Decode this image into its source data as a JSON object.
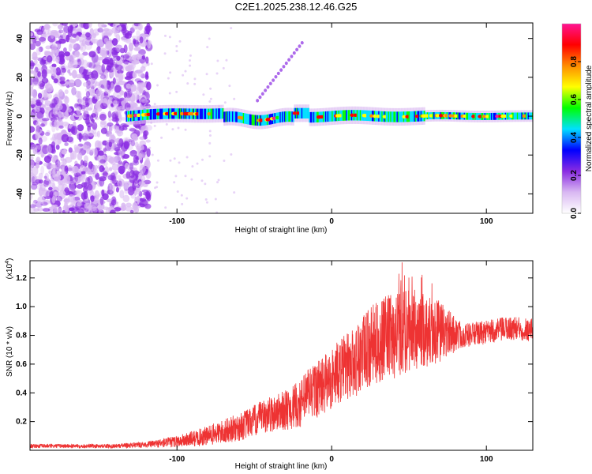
{
  "title": "C2E1.2025.238.12.46.G25",
  "chart_data": [
    {
      "type": "heatmap",
      "name": "spectrogram",
      "xlabel": "Height of straight line (km)",
      "ylabel": "Frequency (Hz)",
      "xlim": [
        -195,
        130
      ],
      "ylim": [
        -50,
        48
      ],
      "xticks": [
        -100,
        0,
        100
      ],
      "xtick_labels": [
        "-100",
        "0",
        "100"
      ],
      "yticks": [
        -40,
        -20,
        0,
        20,
        40
      ],
      "ytick_labels": [
        "-40",
        "-20",
        "0",
        "20",
        "40"
      ],
      "signal_start_km": -133,
      "noise_edge_km": -118,
      "colorbar": {
        "label": "Normalized spectral amplitude",
        "range": [
          0,
          1
        ],
        "ticks": [
          0.0,
          0.2,
          0.4,
          0.6,
          0.8
        ],
        "tick_labels": [
          "0.0",
          "0.2",
          "0.4",
          "0.6",
          "0.8"
        ],
        "colors": [
          "#ffffff",
          "#d9b8f2",
          "#8a2be2",
          "#0000ff",
          "#00e0ff",
          "#00ff00",
          "#ffff00",
          "#ff8c00",
          "#ff0000",
          "#ff1493"
        ]
      }
    },
    {
      "type": "line",
      "name": "snr",
      "xlabel": "Height of straight line (km)",
      "ylabel": "SNR (10 * v/v)",
      "y_multiplier": "(x10",
      "y_multiplier_exp": "4",
      "y_multiplier_close": ")",
      "xlim": [
        -195,
        130
      ],
      "ylim": [
        0,
        1.32
      ],
      "xticks": [
        -100,
        0,
        100
      ],
      "xtick_labels": [
        "-100",
        "0",
        "100"
      ],
      "yticks": [
        0.2,
        0.4,
        0.6,
        0.8,
        1.0,
        1.2
      ],
      "ytick_labels": [
        "0.2",
        "0.4",
        "0.6",
        "0.8",
        "1.0",
        "1.2"
      ],
      "line_color": "#ee3333",
      "envelope": {
        "x": [
          -195,
          -140,
          -120,
          -100,
          -90,
          -80,
          -60,
          -40,
          -30,
          -20,
          -15,
          -5,
          5,
          15,
          25,
          35,
          45,
          55,
          65,
          75,
          85,
          100,
          115,
          130
        ],
        "mean": [
          0.03,
          0.03,
          0.04,
          0.06,
          0.08,
          0.1,
          0.16,
          0.25,
          0.28,
          0.32,
          0.4,
          0.45,
          0.55,
          0.62,
          0.72,
          0.78,
          0.82,
          0.84,
          0.83,
          0.82,
          0.8,
          0.82,
          0.85,
          0.84
        ],
        "spread": [
          0.01,
          0.01,
          0.015,
          0.03,
          0.04,
          0.05,
          0.07,
          0.09,
          0.1,
          0.12,
          0.14,
          0.15,
          0.16,
          0.18,
          0.2,
          0.21,
          0.22,
          0.2,
          0.18,
          0.12,
          0.06,
          0.06,
          0.06,
          0.06
        ]
      }
    }
  ]
}
